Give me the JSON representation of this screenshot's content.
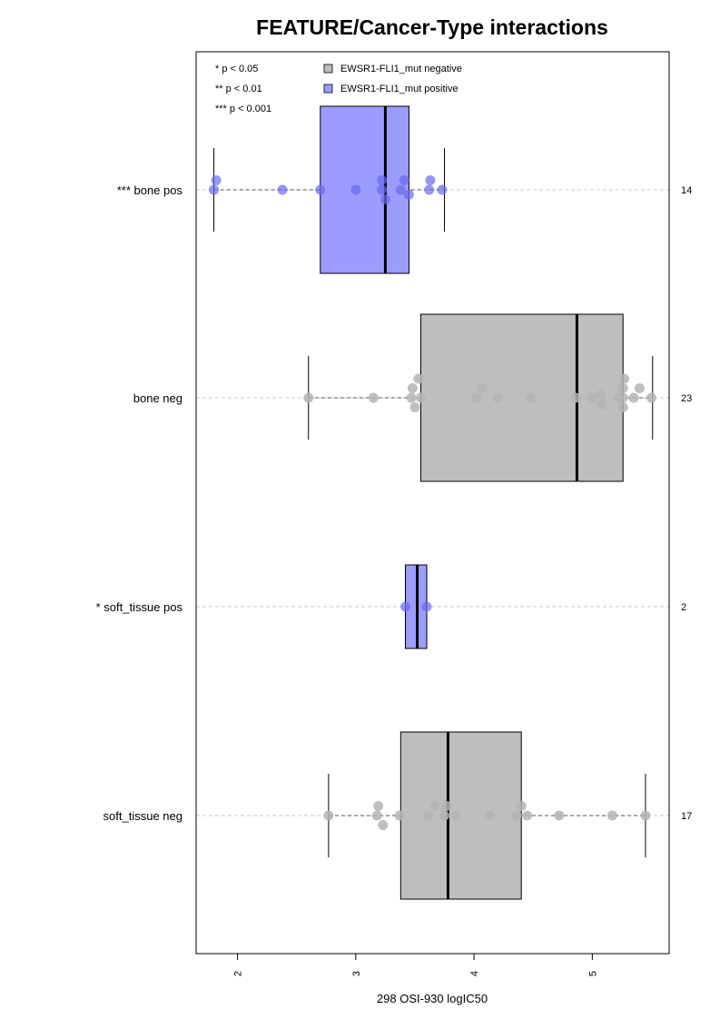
{
  "chart_data": {
    "type": "boxplot",
    "title": "FEATURE/Cancer-Type interactions",
    "xlabel": "298 OSI-930 logIC50",
    "ylabel": "",
    "xlim": [
      1.65,
      5.65
    ],
    "x_ticks": [
      2,
      3,
      4,
      5
    ],
    "grid": "horizontal dashed",
    "legend": {
      "placement": "top",
      "significance": [
        "* p < 0.05",
        "** p < 0.01",
        "*** p < 0.001"
      ],
      "entries": [
        {
          "label": "EWSR1-FLI1_mut negative",
          "color": "#bebebe"
        },
        {
          "label": "EWSR1-FLI1_mut positive",
          "color": "#9c9cff"
        }
      ]
    },
    "colors": {
      "negative_box": "#bebebe",
      "positive_box": "#9c9cff",
      "negative_point": "#b4b4b4",
      "positive_point": "#6a6aee"
    },
    "groups": [
      {
        "label": "*** bone pos",
        "n": "14",
        "status": "positive",
        "whisker_low": 1.8,
        "q1": 2.7,
        "median": 3.25,
        "q3": 3.45,
        "whisker_high": 3.75,
        "points": [
          [
            1.8,
            0
          ],
          [
            1.82,
            1
          ],
          [
            2.38,
            0
          ],
          [
            2.7,
            0
          ],
          [
            3.0,
            0
          ],
          [
            3.22,
            0
          ],
          [
            3.22,
            1
          ],
          [
            3.25,
            -1
          ],
          [
            3.38,
            0
          ],
          [
            3.41,
            1
          ],
          [
            3.45,
            -0.5
          ],
          [
            3.62,
            0
          ],
          [
            3.63,
            1
          ],
          [
            3.73,
            0
          ]
        ]
      },
      {
        "label": "bone neg",
        "n": "23",
        "status": "negative",
        "whisker_low": 2.6,
        "q1": 3.55,
        "median": 4.87,
        "q3": 5.26,
        "whisker_high": 5.51,
        "points": [
          [
            2.6,
            0
          ],
          [
            3.15,
            0
          ],
          [
            3.47,
            0
          ],
          [
            3.48,
            1
          ],
          [
            3.5,
            -1
          ],
          [
            3.53,
            2
          ],
          [
            3.55,
            0
          ],
          [
            4.02,
            0
          ],
          [
            4.07,
            1
          ],
          [
            4.2,
            0
          ],
          [
            4.48,
            0
          ],
          [
            4.86,
            0
          ],
          [
            5.0,
            0
          ],
          [
            5.07,
            0.3
          ],
          [
            5.08,
            -0.7
          ],
          [
            5.22,
            0
          ],
          [
            5.26,
            0
          ],
          [
            5.26,
            1
          ],
          [
            5.26,
            -1
          ],
          [
            5.27,
            2
          ],
          [
            5.35,
            0
          ],
          [
            5.4,
            1
          ],
          [
            5.5,
            0
          ]
        ]
      },
      {
        "label": "* soft_tissue pos",
        "n": "2",
        "status": "positive",
        "whisker_low": 3.42,
        "q1": 3.42,
        "median": 3.52,
        "q3": 3.6,
        "whisker_high": 3.6,
        "points": [
          [
            3.42,
            0
          ],
          [
            3.6,
            0
          ]
        ]
      },
      {
        "label": "soft_tissue neg",
        "n": "17",
        "status": "negative",
        "whisker_low": 2.77,
        "q1": 3.38,
        "median": 3.78,
        "q3": 4.4,
        "whisker_high": 5.45,
        "points": [
          [
            2.77,
            0
          ],
          [
            3.18,
            0
          ],
          [
            3.19,
            1
          ],
          [
            3.23,
            -1
          ],
          [
            3.37,
            0
          ],
          [
            3.61,
            0
          ],
          [
            3.67,
            1
          ],
          [
            3.75,
            0
          ],
          [
            3.77,
            1
          ],
          [
            3.85,
            0
          ],
          [
            4.13,
            0
          ],
          [
            4.36,
            0
          ],
          [
            4.4,
            1
          ],
          [
            4.45,
            0
          ],
          [
            4.72,
            0
          ],
          [
            5.17,
            0
          ],
          [
            5.45,
            0
          ]
        ]
      }
    ]
  }
}
